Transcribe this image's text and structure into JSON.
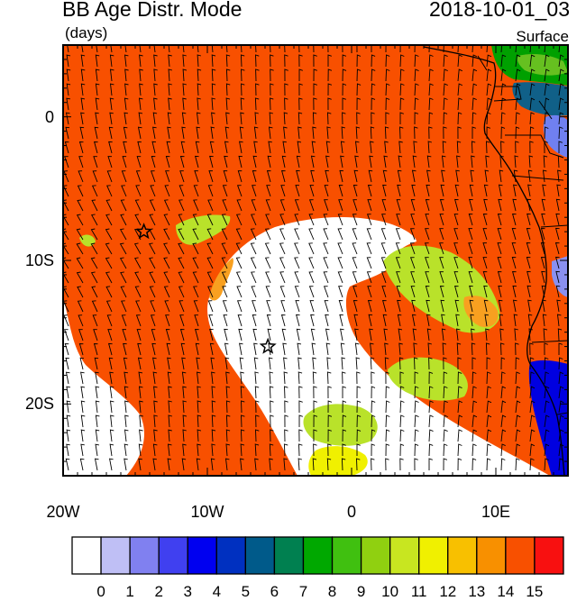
{
  "header": {
    "title": "BB Age Distr. Mode",
    "date": "2018-10-01_03",
    "units": "(days)",
    "level": "Surface"
  },
  "map": {
    "lon_range": [
      -20,
      15
    ],
    "lat_range": [
      -25,
      5
    ],
    "x_ticks": [
      {
        "value": -20,
        "label": "20W"
      },
      {
        "value": -10,
        "label": "10W"
      },
      {
        "value": 0,
        "label": "0"
      },
      {
        "value": 10,
        "label": "10E"
      }
    ],
    "y_ticks": [
      {
        "value": 0,
        "label": "0"
      },
      {
        "value": -10,
        "label": "10S"
      },
      {
        "value": -20,
        "label": "20S"
      }
    ],
    "stars": [
      {
        "lon": -14.4,
        "lat": -8.0
      },
      {
        "lon": -5.8,
        "lat": -16.0
      }
    ]
  },
  "colorbar": {
    "labels": [
      "0",
      "1",
      "2",
      "3",
      "4",
      "5",
      "6",
      "7",
      "8",
      "9",
      "10",
      "11",
      "12",
      "13",
      "14",
      "15"
    ],
    "colors": [
      "#ffffff",
      "#bfbff5",
      "#8080f0",
      "#4040f0",
      "#0000f0",
      "#0030c0",
      "#005a8a",
      "#008050",
      "#00a800",
      "#40c010",
      "#90d010",
      "#c8e620",
      "#f0f000",
      "#f8c000",
      "#f89000",
      "#f85000",
      "#f81010"
    ]
  },
  "legend": {
    "regions": {
      "background": "#f85000",
      "white_plume": "#ffffff",
      "green_light": "#b9e22a",
      "green_mid": "#66c020",
      "green_dark": "#00a000",
      "yellow": "#f0f000",
      "orange": "#f8a020",
      "blue": "#0000e0",
      "blue_light": "#7080f0",
      "teal": "#106088",
      "pale": "#bfbff5"
    }
  }
}
